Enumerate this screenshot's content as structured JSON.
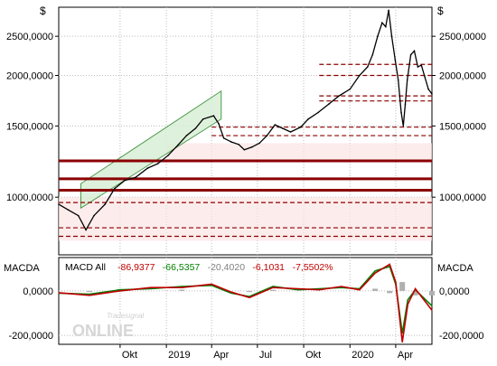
{
  "chart_data": [
    {
      "type": "line",
      "name": "price",
      "currency_left": "$",
      "currency_right": "$",
      "y_scale": "log",
      "ylim": [
        720,
        2950
      ],
      "y_ticks": [
        {
          "value": 2500,
          "label": "2500,0000"
        },
        {
          "value": 2000,
          "label": "2000,0000"
        },
        {
          "value": 1500,
          "label": "1500,0000"
        },
        {
          "value": 1000,
          "label": "1000,0000"
        }
      ],
      "x_ticks": [
        "Okt",
        "2019",
        "Apr",
        "Jul",
        "Okt",
        "2020",
        "Apr"
      ],
      "grid": true,
      "series": [
        {
          "color": "#000000",
          "points": [
            [
              "2018-06-01",
              960
            ],
            [
              "2018-06-20",
              930
            ],
            [
              "2018-07-10",
              900
            ],
            [
              "2018-07-25",
              830
            ],
            [
              "2018-08-10",
              900
            ],
            [
              "2018-09-01",
              960
            ],
            [
              "2018-09-20",
              1050
            ],
            [
              "2018-10-10",
              1100
            ],
            [
              "2018-11-01",
              1120
            ],
            [
              "2018-11-25",
              1180
            ],
            [
              "2018-12-15",
              1210
            ],
            [
              "2019-01-05",
              1270
            ],
            [
              "2019-01-25",
              1350
            ],
            [
              "2019-02-10",
              1420
            ],
            [
              "2019-02-28",
              1480
            ],
            [
              "2019-03-15",
              1560
            ],
            [
              "2019-04-05",
              1590
            ],
            [
              "2019-04-15",
              1520
            ],
            [
              "2019-04-25",
              1400
            ],
            [
              "2019-05-10",
              1370
            ],
            [
              "2019-05-25",
              1350
            ],
            [
              "2019-06-05",
              1310
            ],
            [
              "2019-06-20",
              1330
            ],
            [
              "2019-07-05",
              1360
            ],
            [
              "2019-07-20",
              1420
            ],
            [
              "2019-08-05",
              1510
            ],
            [
              "2019-08-20",
              1480
            ],
            [
              "2019-09-05",
              1450
            ],
            [
              "2019-09-25",
              1490
            ],
            [
              "2019-10-10",
              1560
            ],
            [
              "2019-10-30",
              1620
            ],
            [
              "2019-11-20",
              1700
            ],
            [
              "2019-12-10",
              1780
            ],
            [
              "2020-01-01",
              1850
            ],
            [
              "2020-01-20",
              2000
            ],
            [
              "2020-02-05",
              2100
            ],
            [
              "2020-02-15",
              2250
            ],
            [
              "2020-02-25",
              2500
            ],
            [
              "2020-03-05",
              2700
            ],
            [
              "2020-03-12",
              2640
            ],
            [
              "2020-03-18",
              2900
            ],
            [
              "2020-03-24",
              2500
            ],
            [
              "2020-03-31",
              2180
            ],
            [
              "2020-04-06",
              1950
            ],
            [
              "2020-04-12",
              1620
            ],
            [
              "2020-04-16",
              1500
            ],
            [
              "2020-04-20",
              1700
            ],
            [
              "2020-04-24",
              1950
            ],
            [
              "2020-05-01",
              2250
            ],
            [
              "2020-05-08",
              2300
            ],
            [
              "2020-05-15",
              2100
            ],
            [
              "2020-05-22",
              2120
            ],
            [
              "2020-05-29",
              1980
            ],
            [
              "2020-06-05",
              1850
            ],
            [
              "2020-06-12",
              1800
            ]
          ]
        }
      ],
      "trend_channel": {
        "start": [
          "2018-07-15",
          940,
          1080
        ],
        "end": [
          "2019-04-20",
          1560,
          1830
        ]
      },
      "support_levels": [
        {
          "value": 1230,
          "style": "solid",
          "strength": "strong"
        },
        {
          "value": 1110,
          "style": "solid",
          "strength": "strong"
        },
        {
          "value": 1040,
          "style": "solid",
          "strength": "strong"
        },
        {
          "value": 970,
          "style": "dashed"
        },
        {
          "value": 840,
          "style": "dashed"
        },
        {
          "value": 800,
          "style": "dashed"
        },
        {
          "value": 2130,
          "style": "dashed"
        },
        {
          "value": 2000,
          "style": "dashed"
        },
        {
          "value": 1780,
          "style": "dashed"
        },
        {
          "value": 1730,
          "style": "dashed"
        },
        {
          "value": 1490,
          "style": "dashed"
        },
        {
          "value": 1420,
          "style": "dashed"
        }
      ]
    },
    {
      "type": "line",
      "name": "macd",
      "panel_label_left": "MACDA",
      "panel_label_right": "MACDA",
      "legend_label": "MACD All",
      "legend_values": [
        {
          "text": "-86,9377",
          "color": "#c00000"
        },
        {
          "text": "-66,5357",
          "color": "#008000"
        },
        {
          "text": "-20,4020",
          "color": "#808080"
        },
        {
          "text": "-6,1031",
          "color": "#c00000"
        },
        {
          "text": "-7,5502%",
          "color": "#c00000"
        }
      ],
      "ylim": [
        -240,
        150
      ],
      "y_ticks": [
        {
          "value": 0,
          "label": "0,0000"
        },
        {
          "value": -200,
          "label": "-200,0000"
        }
      ],
      "series": [
        {
          "color": "#008000",
          "points": [
            [
              "2018-06-01",
              -10
            ],
            [
              "2018-08-01",
              -15
            ],
            [
              "2018-10-01",
              5
            ],
            [
              "2018-12-01",
              10
            ],
            [
              "2019-02-01",
              20
            ],
            [
              "2019-04-01",
              25
            ],
            [
              "2019-05-10",
              -10
            ],
            [
              "2019-06-15",
              -25
            ],
            [
              "2019-08-01",
              20
            ],
            [
              "2019-09-20",
              5
            ],
            [
              "2019-11-01",
              10
            ],
            [
              "2019-12-15",
              15
            ],
            [
              "2020-01-20",
              10
            ],
            [
              "2020-02-20",
              90
            ],
            [
              "2020-03-20",
              110
            ],
            [
              "2020-04-01",
              30
            ],
            [
              "2020-04-14",
              -190
            ],
            [
              "2020-04-25",
              -40
            ],
            [
              "2020-05-10",
              5
            ],
            [
              "2020-06-12",
              -67
            ]
          ]
        },
        {
          "color": "#c00000",
          "points": [
            [
              "2018-06-01",
              -8
            ],
            [
              "2018-08-01",
              -20
            ],
            [
              "2018-10-01",
              0
            ],
            [
              "2018-12-01",
              15
            ],
            [
              "2019-02-01",
              15
            ],
            [
              "2019-04-01",
              30
            ],
            [
              "2019-05-10",
              -5
            ],
            [
              "2019-06-15",
              -30
            ],
            [
              "2019-08-01",
              15
            ],
            [
              "2019-09-20",
              10
            ],
            [
              "2019-11-01",
              5
            ],
            [
              "2019-12-15",
              20
            ],
            [
              "2020-01-20",
              5
            ],
            [
              "2020-02-20",
              80
            ],
            [
              "2020-03-20",
              120
            ],
            [
              "2020-04-01",
              40
            ],
            [
              "2020-04-14",
              -230
            ],
            [
              "2020-04-25",
              -60
            ],
            [
              "2020-05-10",
              10
            ],
            [
              "2020-06-12",
              -87
            ]
          ]
        }
      ],
      "histogram": [
        [
          "2018-08-01",
          -5
        ],
        [
          "2018-10-01",
          8
        ],
        [
          "2019-02-01",
          6
        ],
        [
          "2019-06-15",
          -5
        ],
        [
          "2019-08-01",
          5
        ],
        [
          "2020-02-20",
          10
        ],
        [
          "2020-03-20",
          -10
        ],
        [
          "2020-04-14",
          40
        ],
        [
          "2020-05-10",
          -20
        ],
        [
          "2020-06-12",
          -20
        ]
      ]
    }
  ],
  "watermark": {
    "small": "Tradesignal",
    "big": "ONLINE"
  }
}
